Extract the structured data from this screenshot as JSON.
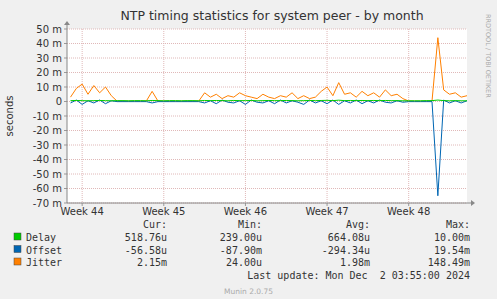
{
  "chart_data": {
    "type": "line",
    "title": "NTP timing statistics for system peer - by month",
    "y_label": "seconds",
    "watermark": "RRDTOOL / TOBI OETIKER",
    "stat_headers": [
      "Cur:",
      "Min:",
      "Avg:",
      "Max:"
    ],
    "footer": "Last update: Mon Dec  2 03:55:00 2024",
    "credits": "Munin 2.0.75",
    "grid": true,
    "xlim": [
      -1.3,
      33
    ],
    "xticks": [
      {
        "value": 0,
        "label": "Week 44"
      },
      {
        "value": 7,
        "label": "Week 45"
      },
      {
        "value": 14,
        "label": "Week 46"
      },
      {
        "value": 21,
        "label": "Week 47"
      },
      {
        "value": 28,
        "label": "Week 48"
      }
    ],
    "ylim": [
      -0.07,
      0.05
    ],
    "yticks": [
      {
        "value": 0.05,
        "label": "50 m"
      },
      {
        "value": 0.04,
        "label": "40 m"
      },
      {
        "value": 0.03,
        "label": "30 m"
      },
      {
        "value": 0.02,
        "label": "20 m"
      },
      {
        "value": 0.01,
        "label": "10 m"
      },
      0,
      {
        "value": -0.01,
        "label": "-10 m"
      },
      {
        "value": -0.02,
        "label": "-20 m"
      },
      {
        "value": -0.03,
        "label": "-30 m"
      },
      {
        "value": -0.04,
        "label": "-40 m"
      },
      {
        "value": -0.05,
        "label": "-50 m"
      },
      {
        "value": -0.06,
        "label": "-60 m"
      },
      {
        "value": -0.07,
        "label": "-70 m"
      }
    ],
    "x": [
      -1,
      -0.5,
      0,
      0.5,
      1,
      1.5,
      2,
      2.5,
      3,
      3.5,
      4,
      4.5,
      5,
      5.5,
      6,
      6.5,
      7,
      7.5,
      8,
      8.5,
      9,
      9.5,
      10,
      10.5,
      11,
      11.5,
      12,
      12.5,
      13,
      13.5,
      14,
      14.5,
      15,
      15.5,
      16,
      16.5,
      17,
      17.5,
      18,
      18.5,
      19,
      19.5,
      20,
      20.5,
      21,
      21.5,
      22,
      22.5,
      23,
      23.5,
      24,
      24.5,
      25,
      25.5,
      26,
      26.5,
      27,
      27.5,
      28,
      28.5,
      29,
      29.5,
      30,
      30.5,
      31,
      31.5,
      32,
      32.5,
      33
    ],
    "series": [
      {
        "name": "Delay",
        "color": "#00CC00",
        "stats": [
          "518.76u",
          "239.00u",
          "664.08u",
          "10.00m"
        ],
        "values": [
          0.0006,
          0.0007,
          0.0006,
          0.0005,
          0.0006,
          0.0007,
          0.0006,
          0.0005,
          0.0006,
          0.0006,
          0.0005,
          0.0006,
          0.0006,
          0.0005,
          0.0007,
          0.0006,
          0.0005,
          0.0006,
          0.0006,
          0.0005,
          0.0006,
          0.0006,
          0.0005,
          0.0007,
          0.0006,
          0.0007,
          0.0006,
          0.0005,
          0.0007,
          0.0006,
          0.0006,
          0.0007,
          0.0005,
          0.0006,
          0.0007,
          0.0006,
          0.0006,
          0.0007,
          0.0006,
          0.0005,
          0.0006,
          0.0007,
          0.0006,
          0.0007,
          0.0008,
          0.0006,
          0.0009,
          0.0006,
          0.0007,
          0.0006,
          0.0007,
          0.0006,
          0.0007,
          0.0006,
          0.0007,
          0.0006,
          0.0006,
          0.0005,
          0.0005,
          0.0005,
          0.0005,
          0.0006,
          0.0006,
          0.001,
          0.0006,
          0.0005,
          0.0006,
          0.0005,
          0.0005
        ]
      },
      {
        "name": "Offset",
        "color": "#0066B3",
        "stats": [
          "-56.58u",
          "-87.90m",
          "-294.34u",
          "19.54m"
        ],
        "values": [
          -0.001,
          0.001,
          -0.002,
          0.0005,
          -0.001,
          0.001,
          -0.0015,
          0.0005,
          -0.0001,
          -0.0001,
          -0.0001,
          -0.0001,
          -0.0001,
          -0.0001,
          -0.001,
          -0.0001,
          -0.0001,
          -0.0001,
          -0.0001,
          -0.0001,
          -0.0001,
          -0.0001,
          -0.0001,
          -0.001,
          0.0005,
          -0.0015,
          0.001,
          -0.0005,
          -0.001,
          0.0005,
          -0.002,
          0.001,
          -0.0005,
          -0.001,
          0.0005,
          -0.0015,
          0.001,
          -0.001,
          0.0005,
          -0.0005,
          -0.002,
          0.001,
          -0.001,
          0.0005,
          -0.0015,
          0.001,
          -0.002,
          0.0005,
          -0.001,
          0.001,
          -0.0015,
          0.0005,
          -0.001,
          0.001,
          -0.0005,
          -0.001,
          0.0005,
          -0.0005,
          -0.0001,
          -0.0001,
          -0.0001,
          -0.0001,
          -0.0001,
          -0.065,
          0.001,
          -0.001,
          0.0005,
          -0.001,
          0.0005
        ]
      },
      {
        "name": "Jitter",
        "color": "#FF8000",
        "stats": [
          "2.15m",
          "24.00u",
          "1.98m",
          "148.49m"
        ],
        "values": [
          0.003,
          0.009,
          0.012,
          0.005,
          0.011,
          0.006,
          0.01,
          0.004,
          0.0002,
          0.0002,
          0.0002,
          0.0002,
          0.0002,
          0.0003,
          0.007,
          0.0003,
          0.0002,
          0.0002,
          0.0002,
          0.0002,
          0.0002,
          0.0002,
          0.0003,
          0.006,
          0.003,
          0.005,
          0.002,
          0.004,
          0.003,
          0.006,
          0.004,
          0.003,
          0.002,
          0.005,
          0.003,
          0.002,
          0.004,
          0.003,
          0.006,
          0.002,
          0.004,
          0.002,
          0.003,
          0.007,
          0.01,
          0.004,
          0.013,
          0.005,
          0.006,
          0.003,
          0.007,
          0.004,
          0.006,
          0.003,
          0.008,
          0.004,
          0.005,
          0.002,
          0.0003,
          0.0002,
          0.0002,
          0.0002,
          0.0003,
          0.044,
          0.008,
          0.005,
          0.006,
          0.003,
          0.004
        ]
      }
    ]
  }
}
